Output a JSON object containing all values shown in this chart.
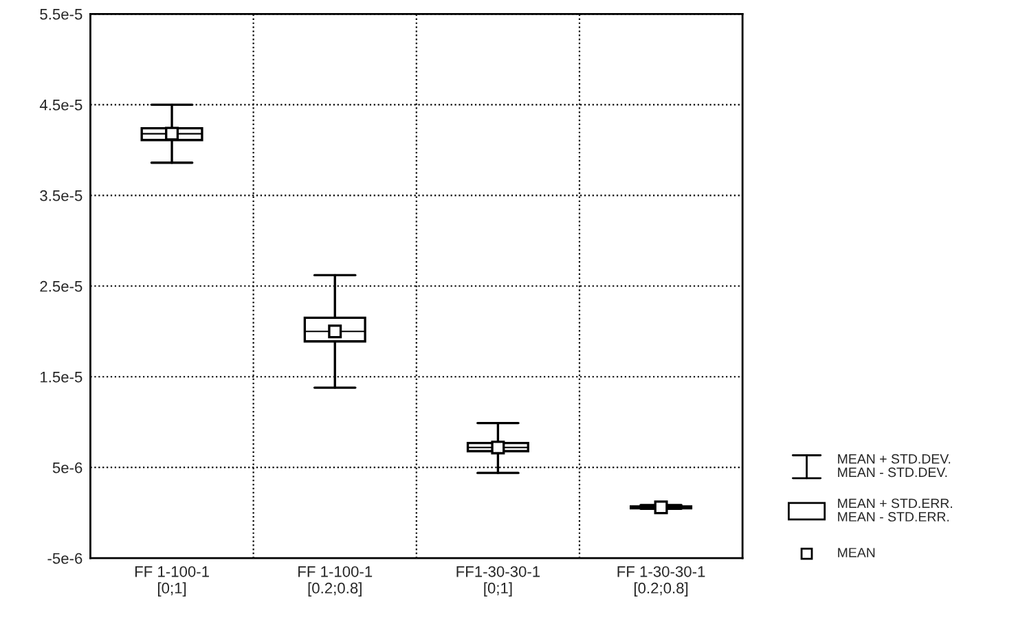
{
  "chart_data": {
    "type": "box",
    "categories": [
      "FF 1-100-1\n[0;1]",
      "FF 1-100-1\n[0.2;0.8]",
      "FF1-30-30-1\n[0;1]",
      "FF 1-30-30-1\n[0.2;0.8]"
    ],
    "boxes": [
      {
        "low": 3.86e-05,
        "q1": 4.11e-05,
        "median": 4.18e-05,
        "q3": 4.24e-05,
        "high": 4.5e-05,
        "mean": 4.18e-05
      },
      {
        "low": 1.38e-05,
        "q1": 1.89e-05,
        "median": 2e-05,
        "q3": 2.15e-05,
        "high": 2.62e-05,
        "mean": 2e-05
      },
      {
        "low": 4.4e-06,
        "q1": 6.8e-06,
        "median": 7.2e-06,
        "q3": 7.7e-06,
        "high": 9.9e-06,
        "mean": 7.2e-06
      },
      {
        "low": 4.5e-07,
        "q1": 5e-07,
        "median": 6e-07,
        "q3": 7e-07,
        "high": 8.5e-07,
        "mean": 6e-07
      }
    ],
    "ylim": [
      -5e-06,
      5.5e-05
    ],
    "yticks": [
      {
        "value": -5e-06,
        "label": "-5e-6"
      },
      {
        "value": 5e-06,
        "label": "5e-6"
      },
      {
        "value": 1.5e-05,
        "label": "1.5e-5"
      },
      {
        "value": 2.5e-05,
        "label": "2.5e-5"
      },
      {
        "value": 3.5e-05,
        "label": "3.5e-5"
      },
      {
        "value": 4.5e-05,
        "label": "4.5e-5"
      },
      {
        "value": 5.5e-05,
        "label": "5.5e-5"
      }
    ],
    "grid": true,
    "annotations": [
      "MEAN + STD.DEV.\nMEAN - STD.DEV.",
      "MEAN + STD.ERR.\nMEAN - STD.ERR.",
      "MEAN"
    ]
  }
}
